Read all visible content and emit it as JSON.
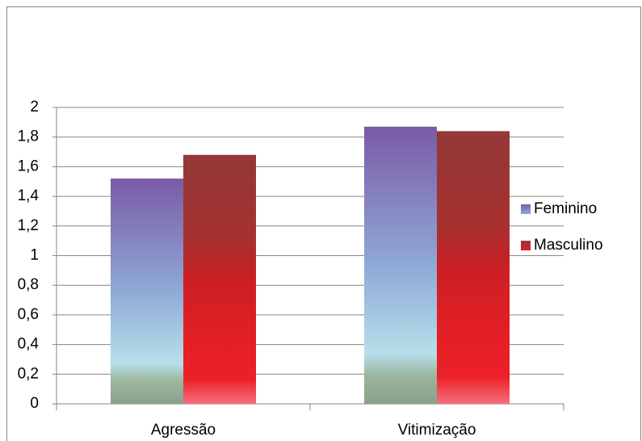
{
  "chart_data": {
    "type": "bar",
    "categories": [
      "Agressão",
      "Vitimização"
    ],
    "series": [
      {
        "name": "Feminino",
        "color": "#8fa9d6",
        "values": [
          1.52,
          1.87
        ]
      },
      {
        "name": "Masculino",
        "color": "#e01f24",
        "values": [
          1.68,
          1.84
        ]
      }
    ],
    "ylim": [
      0,
      2
    ],
    "yticks": [
      0,
      {
        "value": 0.2,
        "label": "0,2"
      },
      {
        "value": 0.4,
        "label": "0,4"
      },
      {
        "value": 0.6,
        "label": "0,6"
      },
      {
        "value": 0.8,
        "label": "0,8"
      },
      1,
      {
        "value": 1.2,
        "label": "1,2"
      },
      {
        "value": 1.4,
        "label": "1,4"
      },
      {
        "value": 1.6,
        "label": "1,6"
      },
      {
        "value": 1.8,
        "label": "1,8"
      },
      2
    ],
    "grid": true,
    "legend": "right"
  }
}
